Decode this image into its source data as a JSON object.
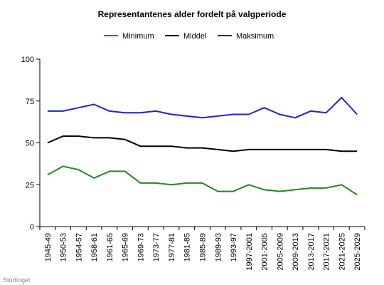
{
  "chart_data": {
    "type": "line",
    "title": "Representantenes alder fordelt på valgperiode",
    "xlabel": "",
    "ylabel": "",
    "source": "Stortinget",
    "ylim": [
      0,
      100
    ],
    "yticks": [
      0,
      25,
      50,
      75,
      100
    ],
    "legend": "top",
    "grid": false,
    "categories": [
      "1945-49",
      "1950-53",
      "1954-57",
      "1958-61",
      "1961-65",
      "1965-69",
      "1969-73",
      "1973-77",
      "1977-81",
      "1981-85",
      "1985-89",
      "1989-93",
      "1993-97",
      "1997-2001",
      "2001-2005",
      "2005-2009",
      "2009-2013",
      "2013-2017",
      "2017-2021",
      "2021-2025",
      "2025-2029"
    ],
    "series": [
      {
        "name": "Minimum",
        "color": "#1e8c1e",
        "values": [
          31,
          36,
          34,
          29,
          33,
          33,
          26,
          26,
          25,
          26,
          26,
          21,
          21,
          25,
          22,
          21,
          22,
          23,
          23,
          25,
          19
        ]
      },
      {
        "name": "Middel",
        "color": "#000000",
        "values": [
          50,
          54,
          54,
          53,
          53,
          52,
          48,
          48,
          48,
          47,
          47,
          46,
          45,
          46,
          46,
          46,
          46,
          46,
          46,
          45,
          45
        ]
      },
      {
        "name": "Maksimum",
        "color": "#1f1fe0",
        "values": [
          69,
          69,
          71,
          73,
          69,
          68,
          68,
          69,
          67,
          66,
          65,
          66,
          67,
          67,
          71,
          67,
          65,
          69,
          68,
          77,
          67
        ]
      }
    ]
  }
}
